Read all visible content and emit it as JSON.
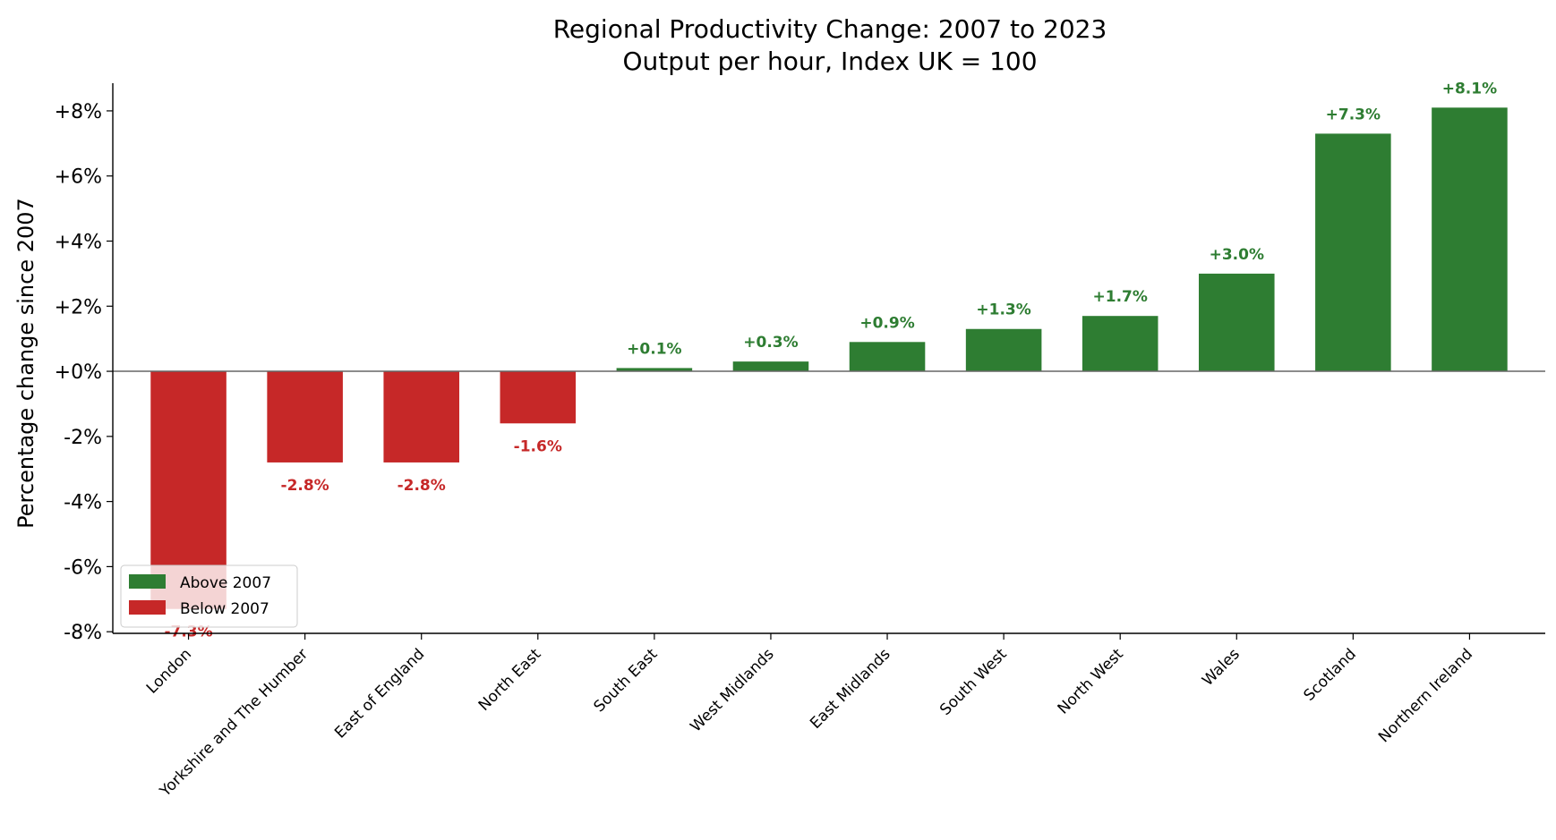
{
  "chart_data": {
    "type": "bar",
    "title": "Regional Productivity Change: 2007 to 2023",
    "subtitle": "Output per hour, Index UK = 100",
    "xlabel": "",
    "ylabel": "Percentage change since 2007",
    "categories": [
      "London",
      "Yorkshire and The Humber",
      "East of England",
      "North East",
      "South East",
      "West Midlands",
      "East Midlands",
      "South West",
      "North West",
      "Wales",
      "Scotland",
      "Northern Ireland"
    ],
    "values": [
      -7.3,
      -2.8,
      -2.8,
      -1.6,
      0.1,
      0.3,
      0.9,
      1.3,
      1.7,
      3.0,
      7.3,
      8.1
    ],
    "data_labels": [
      "-7.3%",
      "-2.8%",
      "-2.8%",
      "-1.6%",
      "+0.1%",
      "+0.3%",
      "+0.9%",
      "+1.3%",
      "+1.7%",
      "+3.0%",
      "+7.3%",
      "+8.1%"
    ],
    "ylim": [
      -8.05,
      8.85
    ],
    "yticks": [
      -8,
      -6,
      -4,
      -2,
      0,
      2,
      4,
      6,
      8
    ],
    "ytick_labels": [
      "-8%",
      "-6%",
      "-4%",
      "-2%",
      "+0%",
      "+2%",
      "+4%",
      "+6%",
      "+8%"
    ],
    "grid": false,
    "colors": {
      "positive": "#2e7d32",
      "negative": "#c62828",
      "zero_line": "#666666"
    },
    "legend": {
      "placement": "lower-left",
      "entries": [
        {
          "label": "Above 2007",
          "color": "#2e7d32"
        },
        {
          "label": "Below 2007",
          "color": "#c62828"
        }
      ]
    }
  }
}
